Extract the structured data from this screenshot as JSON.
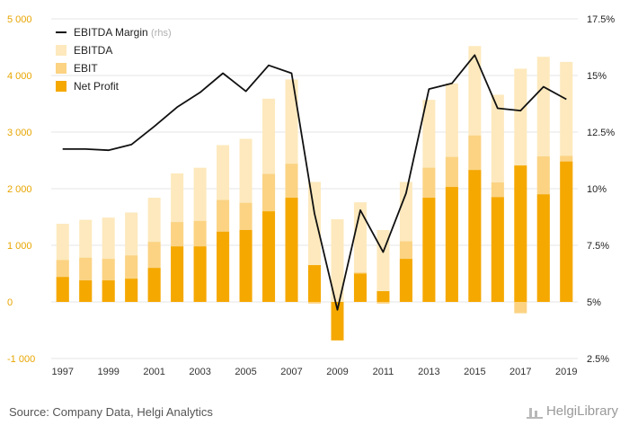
{
  "chart_data": {
    "type": "bar+line",
    "categories": [
      "1997",
      "1998",
      "1999",
      "2000",
      "2001",
      "2002",
      "2003",
      "2004",
      "2005",
      "2006",
      "2007",
      "2008",
      "2009",
      "2010",
      "2011",
      "2012",
      "2013",
      "2014",
      "2015",
      "2016",
      "2017",
      "2018",
      "2019"
    ],
    "x_tick_labels": [
      "1997",
      "1999",
      "2001",
      "2003",
      "2005",
      "2007",
      "2009",
      "2011",
      "2013",
      "2015",
      "2017",
      "2019"
    ],
    "series": [
      {
        "name": "EBITDA",
        "kind": "bar",
        "axis": "left",
        "color": "#fde9bd",
        "values": [
          1380,
          1450,
          1490,
          1580,
          1840,
          2270,
          2370,
          2770,
          2880,
          3590,
          3930,
          2120,
          1460,
          1760,
          1270,
          2120,
          3570,
          3860,
          4520,
          3660,
          4120,
          4330,
          4240
        ]
      },
      {
        "name": "EBIT",
        "kind": "bar",
        "axis": "left",
        "color": "#fbd383",
        "values": [
          740,
          780,
          760,
          820,
          1060,
          1410,
          1430,
          1800,
          1750,
          2260,
          2440,
          -30,
          -40,
          520,
          -30,
          1070,
          2370,
          2560,
          2940,
          2110,
          -200,
          2570,
          2580
        ]
      },
      {
        "name": "Net Profit",
        "kind": "bar",
        "axis": "left",
        "color": "#f5a800",
        "values": [
          440,
          380,
          380,
          410,
          600,
          980,
          980,
          1240,
          1270,
          1600,
          1840,
          650,
          -680,
          500,
          190,
          760,
          1840,
          2030,
          2330,
          1850,
          2410,
          1900,
          2480
        ]
      },
      {
        "name": "EBITDA Margin",
        "legend_suffix": "(rhs)",
        "kind": "line",
        "axis": "right",
        "color": "#111111",
        "values": [
          11.75,
          11.75,
          11.7,
          11.95,
          12.75,
          13.6,
          14.25,
          15.1,
          14.3,
          15.45,
          15.1,
          8.9,
          4.65,
          9.05,
          7.2,
          9.8,
          14.4,
          14.65,
          15.9,
          13.55,
          13.45,
          14.5,
          13.95
        ]
      }
    ],
    "y_left": {
      "ticks": [
        -1000,
        0,
        1000,
        2000,
        3000,
        4000,
        5000
      ],
      "tick_labels": [
        "-1 000",
        "0",
        "1 000",
        "2 000",
        "3 000",
        "4 000",
        "5 000"
      ],
      "range": [
        -1000,
        5000
      ]
    },
    "y_right": {
      "ticks": [
        2.5,
        5,
        7.5,
        10,
        12.5,
        15,
        17.5
      ],
      "tick_labels": [
        "2.5%",
        "5%",
        "7.5%",
        "10%",
        "12.5%",
        "15%",
        "17.5%"
      ],
      "range": [
        2.5,
        17.5
      ]
    },
    "grid": "horizontal",
    "legend_placement": "top-left"
  },
  "footer": {
    "source": "Source: Company Data, Helgi Analytics",
    "brand": "HelgiLibrary"
  }
}
